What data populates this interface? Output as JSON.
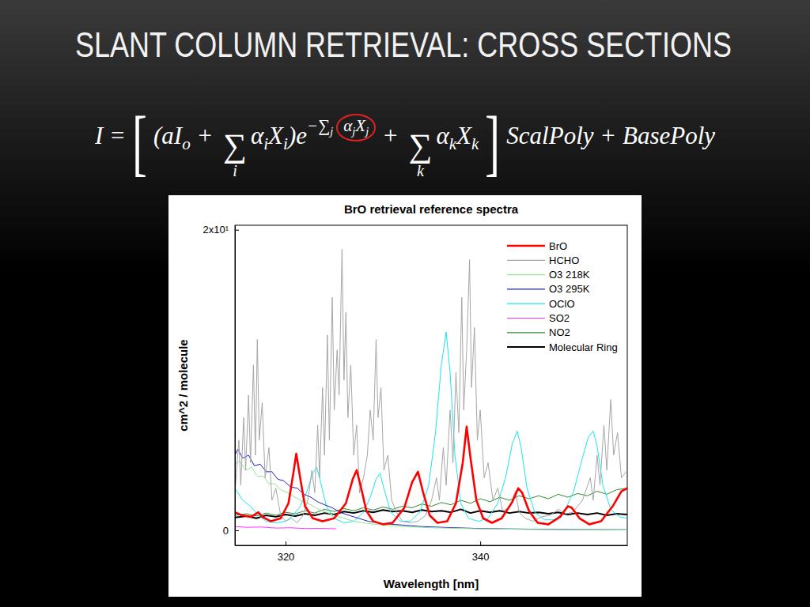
{
  "slide": {
    "title": "SLANT COLUMN RETRIEVAL: CROSS SECTIONS",
    "equation": [
      {
        "text": "I ="
      },
      {
        "text": "[",
        "kind": "bracket"
      },
      {
        "text": "(aI"
      },
      {
        "text": "o",
        "kind": "sub"
      },
      {
        "text": " + "
      },
      {
        "text": "∑",
        "kind": "sum",
        "under": "i"
      },
      {
        "text": "α"
      },
      {
        "text": "i",
        "kind": "sub"
      },
      {
        "text": "X"
      },
      {
        "text": "i",
        "kind": "sub"
      },
      {
        "text": ")e"
      },
      {
        "kind": "sup",
        "parts": [
          {
            "text": "−∑"
          },
          {
            "text": "j",
            "kind": "sub"
          },
          {
            "kind": "circled",
            "parts": [
              {
                "text": "α"
              },
              {
                "text": "j",
                "kind": "sub"
              },
              {
                "text": "X"
              },
              {
                "text": "j",
                "kind": "sub"
              }
            ]
          }
        ]
      },
      {
        "text": " + "
      },
      {
        "text": "∑",
        "kind": "sum",
        "under": "k"
      },
      {
        "text": "α"
      },
      {
        "text": "k",
        "kind": "sub"
      },
      {
        "text": "X"
      },
      {
        "text": "k",
        "kind": "sub"
      },
      {
        "text": "]",
        "kind": "bracket"
      },
      {
        "text": "ScalPoly + BasePoly"
      }
    ]
  },
  "chart_data": {
    "type": "line",
    "title": "BrO retrieval reference spectra",
    "x_label": "Wavelength [nm]",
    "y_label": "cm^2 / molecule",
    "xlim": [
      314.8,
      355.1
    ],
    "xticks": [
      320,
      340
    ],
    "ylim": [
      -1,
      20.3
    ],
    "yticks": [
      0,
      {
        "value": 20,
        "label": "2x10¹"
      }
    ],
    "legend": "top-right",
    "grid": false,
    "series": [
      {
        "name": "BrO",
        "color": "#ff0000",
        "x": [
          314.8,
          315.5,
          316.5,
          317.2,
          317.6,
          318.5,
          319.5,
          320.3,
          320.8,
          321.1,
          321.5,
          322,
          322.8,
          323.8,
          325,
          326.2,
          326.9,
          327.3,
          327.7,
          328.3,
          329,
          330,
          331,
          332.2,
          333,
          333.6,
          334.1,
          334.8,
          335.6,
          336.6,
          337.5,
          338.2,
          338.6,
          339,
          339.6,
          340.3,
          341.2,
          342.2,
          343.3,
          343.9,
          344.3,
          345,
          345.9,
          347,
          348.2,
          349,
          349.4,
          350.2,
          351.2,
          352.4,
          353.6,
          354.5,
          355.1
        ],
        "values": [
          1.2,
          1.0,
          0.9,
          1.2,
          0.9,
          0.6,
          0.8,
          1.8,
          3.8,
          5.1,
          3.5,
          1.6,
          0.8,
          0.6,
          0.8,
          1.8,
          3.4,
          4.0,
          3.0,
          1.3,
          0.6,
          0.4,
          0.5,
          1.5,
          3.2,
          3.9,
          2.6,
          1.0,
          0.5,
          0.6,
          1.8,
          4.5,
          6.9,
          4.8,
          2.0,
          0.8,
          0.5,
          0.8,
          1.9,
          2.8,
          2.5,
          1.3,
          0.5,
          0.4,
          0.9,
          1.6,
          1.5,
          0.8,
          0.4,
          0.6,
          1.6,
          2.6,
          2.8
        ]
      },
      {
        "name": "HCHO",
        "color": "#a6a6a6",
        "x": [
          314.8,
          315.2,
          315.4,
          315.7,
          315.9,
          316.2,
          316.4,
          316.7,
          316.9,
          317.1,
          317.3,
          317.6,
          317.9,
          318.3,
          318.6,
          319.0,
          319.5,
          320.0,
          320.6,
          321.2,
          321.8,
          322.3,
          322.7,
          323.0,
          323.3,
          323.5,
          323.8,
          324.0,
          324.3,
          324.5,
          324.8,
          325.0,
          325.3,
          325.5,
          325.8,
          326.0,
          326.2,
          326.4,
          326.7,
          327.0,
          327.3,
          327.6,
          328.0,
          328.4,
          328.7,
          329.0,
          329.3,
          329.5,
          329.8,
          330.1,
          330.5,
          330.9,
          331.4,
          332.0,
          332.8,
          333.6,
          334.4,
          335.0,
          335.5,
          335.8,
          336.2,
          336.5,
          336.9,
          337.2,
          337.5,
          337.8,
          338.1,
          338.3,
          338.6,
          338.9,
          339.1,
          339.4,
          339.7,
          340.0,
          340.4,
          340.8,
          341.3,
          341.8,
          342.3,
          343.0,
          343.6,
          344.0,
          344.6,
          345.4,
          346.3,
          347.2,
          348.0,
          348.8,
          349.5,
          350.5,
          351.3,
          351.6,
          352.0,
          352.3,
          352.7,
          353.0,
          353.4,
          353.7,
          354.1,
          354.5,
          355.1
        ],
        "values": [
          2.5,
          6.0,
          3.0,
          7.5,
          4.0,
          9.0,
          4.5,
          11.0,
          5.0,
          12.7,
          6.0,
          8.5,
          3.5,
          5.5,
          2.0,
          2.8,
          1.0,
          0.6,
          0.8,
          0.5,
          1.0,
          2.0,
          4.0,
          2.5,
          7.0,
          3.5,
          9.5,
          5.0,
          13.0,
          6.0,
          15.5,
          8.0,
          12.0,
          9.0,
          18.7,
          10.0,
          14.5,
          7.5,
          11.0,
          5.0,
          7.0,
          2.5,
          3.5,
          5.0,
          8.0,
          6.0,
          12.7,
          7.5,
          9.5,
          4.0,
          5.0,
          2.0,
          1.2,
          0.6,
          0.5,
          0.6,
          1.0,
          2.0,
          3.5,
          2.0,
          5.5,
          3.0,
          8.0,
          4.5,
          10.5,
          6.5,
          15.5,
          8.0,
          12.0,
          18.0,
          9.5,
          13.5,
          6.0,
          8.0,
          3.5,
          4.5,
          2.0,
          2.8,
          1.3,
          1.5,
          2.6,
          1.2,
          0.8,
          0.6,
          0.9,
          1.0,
          1.4,
          1.1,
          1.2,
          2.0,
          3.5,
          2.0,
          5.0,
          3.0,
          7.0,
          4.0,
          8.7,
          5.0,
          6.5,
          3.5,
          4.0
        ]
      },
      {
        "name": "O3 218K",
        "color": "#8fe88f",
        "x": [
          314.8,
          315.3,
          315.9,
          316.5,
          317.1,
          317.7,
          318.3,
          318.9,
          319.5,
          320.2,
          321,
          321.8,
          322.6,
          323.4,
          324.2,
          325,
          326,
          327,
          328.5,
          330,
          332,
          335,
          340,
          345,
          350,
          355.1
        ],
        "values": [
          4.4,
          4.6,
          4.0,
          4.2,
          3.6,
          3.6,
          3.1,
          3.1,
          2.7,
          2.5,
          2.2,
          1.9,
          1.7,
          1.4,
          1.2,
          1.0,
          0.8,
          0.6,
          0.45,
          0.35,
          0.25,
          0.17,
          0.1,
          0.06,
          0.04,
          0.03
        ]
      },
      {
        "name": "O3 295K",
        "color": "#1f1fbf",
        "x": [
          314.8,
          315.1,
          315.6,
          316.2,
          316.8,
          317.4,
          318.0,
          318.6,
          319.2,
          319.8,
          320.5,
          321.2,
          321.9,
          322.6,
          323.3,
          324.0,
          324.8,
          325.6,
          326.5,
          327.5,
          328.5,
          330,
          332,
          334,
          337,
          340,
          345,
          350,
          355.1
        ],
        "values": [
          5.0,
          5.4,
          4.8,
          5.0,
          4.3,
          4.4,
          3.9,
          3.9,
          3.4,
          3.3,
          2.9,
          2.8,
          2.4,
          2.2,
          1.9,
          1.7,
          1.5,
          1.2,
          1.0,
          0.8,
          0.6,
          0.45,
          0.35,
          0.25,
          0.18,
          0.12,
          0.08,
          0.05,
          0.04
        ]
      },
      {
        "name": "OClO",
        "color": "#19e6f0",
        "x": [
          314.8,
          315.6,
          316.4,
          317.2,
          318,
          319,
          320,
          320.8,
          321.5,
          322.2,
          322.8,
          323.2,
          323.6,
          324.2,
          325,
          326,
          327,
          328,
          328.7,
          329.3,
          329.7,
          330.1,
          330.8,
          331.8,
          332.8,
          333.8,
          334.7,
          335.4,
          336.0,
          336.5,
          336.9,
          337.4,
          338.0,
          338.8,
          339.8,
          340.8,
          341.8,
          342.6,
          343.3,
          343.8,
          344.2,
          344.8,
          345.6,
          346.6,
          347.6,
          348.6,
          349.6,
          350.4,
          351.1,
          351.6,
          352.0,
          352.6,
          353.4,
          354.3,
          355.1
        ],
        "values": [
          2.8,
          2.0,
          1.6,
          1.0,
          0.6,
          0.5,
          0.6,
          1.0,
          1.6,
          2.6,
          3.8,
          4.2,
          3.2,
          1.6,
          0.8,
          0.5,
          0.6,
          1.2,
          2.2,
          3.4,
          3.8,
          2.8,
          1.2,
          0.6,
          0.6,
          1.2,
          3.0,
          6.5,
          11.0,
          13.2,
          10.5,
          5.0,
          1.8,
          0.8,
          0.6,
          0.8,
          1.8,
          3.5,
          5.8,
          6.6,
          5.5,
          2.8,
          1.2,
          0.7,
          0.7,
          1.2,
          2.6,
          4.6,
          6.2,
          6.6,
          5.6,
          3.0,
          1.4,
          0.9,
          0.8
        ]
      },
      {
        "name": "SO2",
        "color": "#ff33ff",
        "x": [
          314.8,
          316,
          317.5,
          319,
          320.5,
          322,
          323.5,
          325.2
        ],
        "values": [
          0.25,
          0.2,
          0.22,
          0.15,
          0.17,
          0.12,
          0.13,
          0.1
        ]
      },
      {
        "name": "NO2",
        "color": "#2e8b2e",
        "x": [
          314.8,
          316,
          317,
          318,
          319,
          320,
          321,
          322,
          323,
          324,
          325,
          326,
          327,
          328,
          329,
          330,
          331,
          332,
          333,
          334,
          335,
          336,
          337,
          338,
          339,
          340,
          341,
          342,
          343,
          344,
          345,
          346,
          347,
          348,
          349,
          350,
          351,
          352,
          353,
          354,
          355.1
        ],
        "values": [
          1.0,
          1.1,
          0.95,
          1.15,
          1.0,
          1.2,
          1.1,
          1.3,
          1.15,
          1.4,
          1.25,
          1.45,
          1.3,
          1.5,
          1.35,
          1.55,
          1.4,
          1.6,
          1.5,
          1.75,
          1.6,
          1.85,
          1.7,
          2.0,
          1.8,
          2.1,
          1.9,
          2.2,
          2.0,
          2.3,
          2.1,
          2.3,
          2.1,
          2.4,
          2.2,
          2.45,
          2.3,
          2.6,
          2.4,
          2.7,
          2.8
        ]
      },
      {
        "name": "Molecular Ring",
        "color": "#000000",
        "x": [
          314.8,
          316,
          317,
          318,
          319,
          320,
          321,
          322,
          323,
          324,
          325,
          326,
          327,
          328,
          329,
          330,
          331,
          332,
          333,
          334,
          335,
          336,
          337,
          338,
          339,
          340,
          341,
          342,
          343,
          344,
          345,
          346,
          347,
          348,
          349,
          350,
          351,
          352,
          353,
          354,
          355.1
        ],
        "values": [
          0.85,
          0.95,
          0.8,
          1.0,
          0.9,
          1.05,
          0.95,
          1.1,
          1.0,
          1.15,
          1.05,
          1.25,
          1.15,
          1.3,
          1.2,
          1.35,
          1.25,
          1.3,
          1.2,
          1.35,
          1.25,
          1.3,
          1.2,
          1.4,
          1.15,
          1.3,
          1.2,
          1.3,
          1.15,
          1.25,
          1.15,
          1.2,
          1.1,
          1.2,
          1.05,
          1.15,
          1.05,
          1.15,
          1.0,
          1.1,
          1.05
        ]
      }
    ]
  }
}
